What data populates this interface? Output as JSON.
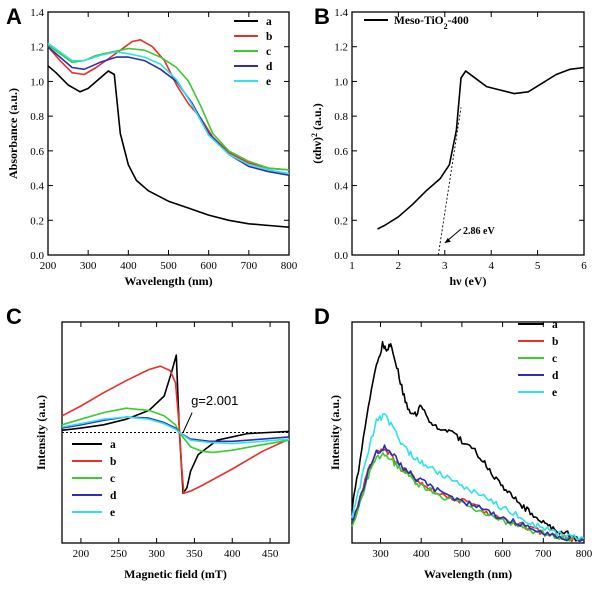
{
  "chart_data": [
    {
      "panel": "A",
      "type": "line",
      "xlabel": "Wavelength (nm)",
      "ylabel": "Absorbance (a.u.)",
      "xlim": [
        200,
        800
      ],
      "ylim": [
        0.0,
        1.4
      ],
      "xticks": [
        "200",
        "300",
        "400",
        "500",
        "600",
        "700",
        "800"
      ],
      "yticks": [
        "0.0",
        "0.2",
        "0.4",
        "0.6",
        "0.8",
        "1.0",
        "1.2",
        "1.4"
      ],
      "legend_position": "top-right",
      "series": [
        {
          "name": "a",
          "color": "#000000",
          "x": [
            200,
            220,
            250,
            280,
            300,
            330,
            350,
            365,
            380,
            400,
            420,
            450,
            500,
            550,
            600,
            650,
            700,
            750,
            800
          ],
          "y": [
            1.09,
            1.05,
            0.98,
            0.94,
            0.96,
            1.02,
            1.06,
            1.04,
            0.7,
            0.52,
            0.43,
            0.37,
            0.31,
            0.27,
            0.23,
            0.2,
            0.18,
            0.17,
            0.16
          ]
        },
        {
          "name": "b",
          "color": "#e8302a",
          "x": [
            200,
            230,
            260,
            290,
            320,
            350,
            380,
            410,
            430,
            460,
            490,
            520,
            550,
            580,
            610,
            650,
            700,
            750,
            800
          ],
          "y": [
            1.2,
            1.12,
            1.05,
            1.04,
            1.08,
            1.13,
            1.18,
            1.23,
            1.24,
            1.2,
            1.12,
            0.98,
            0.87,
            0.79,
            0.68,
            0.59,
            0.53,
            0.5,
            0.49
          ]
        },
        {
          "name": "c",
          "color": "#3acb2d",
          "x": [
            200,
            230,
            260,
            290,
            320,
            360,
            400,
            440,
            480,
            520,
            550,
            580,
            610,
            650,
            700,
            750,
            800
          ],
          "y": [
            1.21,
            1.16,
            1.11,
            1.12,
            1.15,
            1.17,
            1.19,
            1.18,
            1.14,
            1.08,
            1.0,
            0.86,
            0.7,
            0.6,
            0.54,
            0.5,
            0.49
          ]
        },
        {
          "name": "d",
          "color": "#2a2fb5",
          "x": [
            200,
            230,
            260,
            290,
            330,
            370,
            400,
            440,
            480,
            520,
            560,
            600,
            650,
            700,
            750,
            800
          ],
          "y": [
            1.2,
            1.14,
            1.08,
            1.07,
            1.11,
            1.14,
            1.14,
            1.12,
            1.07,
            1.0,
            0.87,
            0.7,
            0.58,
            0.51,
            0.48,
            0.46
          ]
        },
        {
          "name": "e",
          "color": "#2fe0ee",
          "x": [
            200,
            230,
            260,
            290,
            330,
            370,
            400,
            440,
            480,
            520,
            560,
            600,
            650,
            700,
            750,
            800
          ],
          "y": [
            1.22,
            1.17,
            1.12,
            1.12,
            1.15,
            1.17,
            1.16,
            1.14,
            1.1,
            1.01,
            0.86,
            0.69,
            0.58,
            0.52,
            0.49,
            0.47
          ]
        }
      ]
    },
    {
      "panel": "B",
      "type": "line",
      "xlabel": "hν (eV)",
      "ylabel_parts": {
        "open": "(αhν)",
        "sup": "2",
        "close": " (a.u.)"
      },
      "xlim": [
        1,
        6
      ],
      "ylim": [
        0.0,
        1.4
      ],
      "xticks": [
        "1",
        "2",
        "3",
        "4",
        "5",
        "6"
      ],
      "yticks": [
        "0.0",
        "0.2",
        "0.4",
        "0.6",
        "0.8",
        "1.0",
        "1.2",
        "1.4"
      ],
      "legend_position": "top-left",
      "series": [
        {
          "name_parts": {
            "pre": "Meso-TiO",
            "sub": "2",
            "post": "-400"
          },
          "color": "#000000",
          "x": [
            1.55,
            1.7,
            2.0,
            2.3,
            2.6,
            2.9,
            3.1,
            3.25,
            3.35,
            3.45,
            3.6,
            3.9,
            4.2,
            4.5,
            4.8,
            5.1,
            5.4,
            5.7,
            6.0
          ],
          "y": [
            0.15,
            0.17,
            0.22,
            0.29,
            0.37,
            0.44,
            0.52,
            0.72,
            1.02,
            1.06,
            1.03,
            0.97,
            0.95,
            0.93,
            0.94,
            0.99,
            1.04,
            1.07,
            1.08
          ]
        }
      ],
      "tangent": {
        "x": [
          2.86,
          3.35
        ],
        "y": [
          0.0,
          0.85
        ]
      },
      "annotation": "2.86 eV",
      "annotation_arrow": {
        "x": [
          3.35,
          3.0
        ],
        "y": [
          0.15,
          0.07
        ]
      }
    },
    {
      "panel": "C",
      "type": "line",
      "xlabel": "Magnetic field (mT)",
      "ylabel": "Intensity (a.u.)",
      "xlim": [
        175,
        475
      ],
      "ylim": [
        -1.0,
        1.0
      ],
      "xticks": [
        "200",
        "250",
        "300",
        "350",
        "400",
        "450"
      ],
      "legend_position": "bottom-left",
      "annotation": "g=2.001",
      "annotation_arrow": {
        "x": [
          347,
          335
        ],
        "y": [
          0.18,
          0.0
        ]
      },
      "series": [
        {
          "name": "a",
          "color": "#000000",
          "x": [
            175,
            200,
            230,
            260,
            290,
            310,
            320,
            326,
            330,
            335,
            340,
            345,
            355,
            380,
            420,
            475
          ],
          "y": [
            0.02,
            0.04,
            0.07,
            0.12,
            0.2,
            0.33,
            0.55,
            0.7,
            0.02,
            -0.55,
            -0.5,
            -0.35,
            -0.2,
            -0.07,
            -0.01,
            0.01
          ]
        },
        {
          "name": "b",
          "color": "#e8302a",
          "x": [
            175,
            200,
            230,
            260,
            290,
            305,
            318,
            325,
            330,
            333,
            336,
            345,
            360,
            400,
            440,
            475
          ],
          "y": [
            0.15,
            0.24,
            0.36,
            0.47,
            0.57,
            0.6,
            0.56,
            0.45,
            0.05,
            -0.3,
            -0.55,
            -0.53,
            -0.48,
            -0.33,
            -0.17,
            -0.06
          ]
        },
        {
          "name": "c",
          "color": "#3acb2d",
          "x": [
            175,
            200,
            230,
            260,
            290,
            310,
            325,
            330,
            345,
            360,
            375,
            400,
            440,
            475
          ],
          "y": [
            0.07,
            0.12,
            0.18,
            0.22,
            0.2,
            0.15,
            0.07,
            0.0,
            -0.13,
            -0.17,
            -0.18,
            -0.16,
            -0.11,
            -0.07
          ]
        },
        {
          "name": "d",
          "color": "#2a2fb5",
          "x": [
            175,
            200,
            230,
            260,
            290,
            310,
            325,
            330,
            345,
            370,
            400,
            440,
            475
          ],
          "y": [
            0.04,
            0.07,
            0.11,
            0.14,
            0.13,
            0.09,
            0.04,
            0.0,
            -0.06,
            -0.08,
            -0.08,
            -0.06,
            -0.04
          ]
        },
        {
          "name": "e",
          "color": "#2fe0ee",
          "x": [
            175,
            200,
            230,
            260,
            290,
            310,
            325,
            330,
            345,
            370,
            400,
            440,
            475
          ],
          "y": [
            0.05,
            0.08,
            0.12,
            0.14,
            0.12,
            0.08,
            0.03,
            0.0,
            -0.07,
            -0.09,
            -0.1,
            -0.08,
            -0.06
          ]
        }
      ]
    },
    {
      "panel": "D",
      "type": "line",
      "xlabel": "Wavelength (nm)",
      "ylabel": "Intensity (a.u.)",
      "xlim": [
        230,
        800
      ],
      "ylim": [
        0,
        1.0
      ],
      "xticks": [
        "300",
        "400",
        "500",
        "600",
        "700",
        "800"
      ],
      "legend_position": "top-right",
      "series": [
        {
          "name": "a",
          "color": "#000000",
          "x": [
            230,
            250,
            270,
            290,
            305,
            315,
            325,
            340,
            355,
            370,
            385,
            400,
            420,
            440,
            460,
            480,
            500,
            520,
            540,
            560,
            580,
            600,
            620,
            640,
            660,
            680,
            700,
            720,
            740,
            760,
            780,
            800
          ],
          "y": [
            0.15,
            0.38,
            0.62,
            0.8,
            0.9,
            0.88,
            0.9,
            0.8,
            0.68,
            0.6,
            0.58,
            0.62,
            0.56,
            0.52,
            0.5,
            0.5,
            0.46,
            0.44,
            0.4,
            0.35,
            0.3,
            0.26,
            0.22,
            0.18,
            0.15,
            0.12,
            0.09,
            0.07,
            0.05,
            0.04,
            0.02,
            0.01
          ]
        },
        {
          "name": "b",
          "color": "#e8302a",
          "x": [
            230,
            250,
            270,
            290,
            310,
            330,
            350,
            370,
            390,
            410,
            440,
            470,
            500,
            530,
            560,
            590,
            620,
            650,
            680,
            710,
            740,
            770,
            800
          ],
          "y": [
            0.09,
            0.2,
            0.33,
            0.41,
            0.42,
            0.39,
            0.34,
            0.31,
            0.28,
            0.26,
            0.23,
            0.21,
            0.19,
            0.17,
            0.14,
            0.12,
            0.1,
            0.08,
            0.06,
            0.04,
            0.03,
            0.02,
            0.01
          ]
        },
        {
          "name": "c",
          "color": "#3acb2d",
          "x": [
            230,
            250,
            270,
            290,
            310,
            330,
            350,
            370,
            390,
            410,
            440,
            470,
            500,
            530,
            560,
            590,
            620,
            650,
            680,
            710,
            740,
            770,
            800
          ],
          "y": [
            0.08,
            0.18,
            0.3,
            0.38,
            0.4,
            0.37,
            0.33,
            0.3,
            0.27,
            0.25,
            0.22,
            0.2,
            0.18,
            0.16,
            0.13,
            0.11,
            0.09,
            0.07,
            0.05,
            0.04,
            0.03,
            0.02,
            0.01
          ]
        },
        {
          "name": "d",
          "color": "#2a2fb5",
          "x": [
            230,
            250,
            270,
            290,
            310,
            330,
            350,
            370,
            390,
            410,
            440,
            470,
            500,
            530,
            560,
            590,
            620,
            650,
            680,
            710,
            740,
            770,
            800
          ],
          "y": [
            0.09,
            0.2,
            0.33,
            0.41,
            0.43,
            0.4,
            0.35,
            0.32,
            0.29,
            0.27,
            0.24,
            0.21,
            0.19,
            0.17,
            0.14,
            0.12,
            0.1,
            0.08,
            0.06,
            0.04,
            0.03,
            0.02,
            0.01
          ]
        },
        {
          "name": "e",
          "color": "#2fe0ee",
          "x": [
            230,
            250,
            270,
            290,
            310,
            330,
            350,
            370,
            390,
            410,
            440,
            470,
            500,
            530,
            560,
            590,
            620,
            650,
            680,
            710,
            740,
            770,
            800
          ],
          "y": [
            0.12,
            0.26,
            0.42,
            0.55,
            0.58,
            0.52,
            0.45,
            0.41,
            0.38,
            0.35,
            0.32,
            0.29,
            0.26,
            0.23,
            0.2,
            0.17,
            0.14,
            0.11,
            0.08,
            0.06,
            0.04,
            0.03,
            0.02
          ]
        }
      ]
    }
  ]
}
